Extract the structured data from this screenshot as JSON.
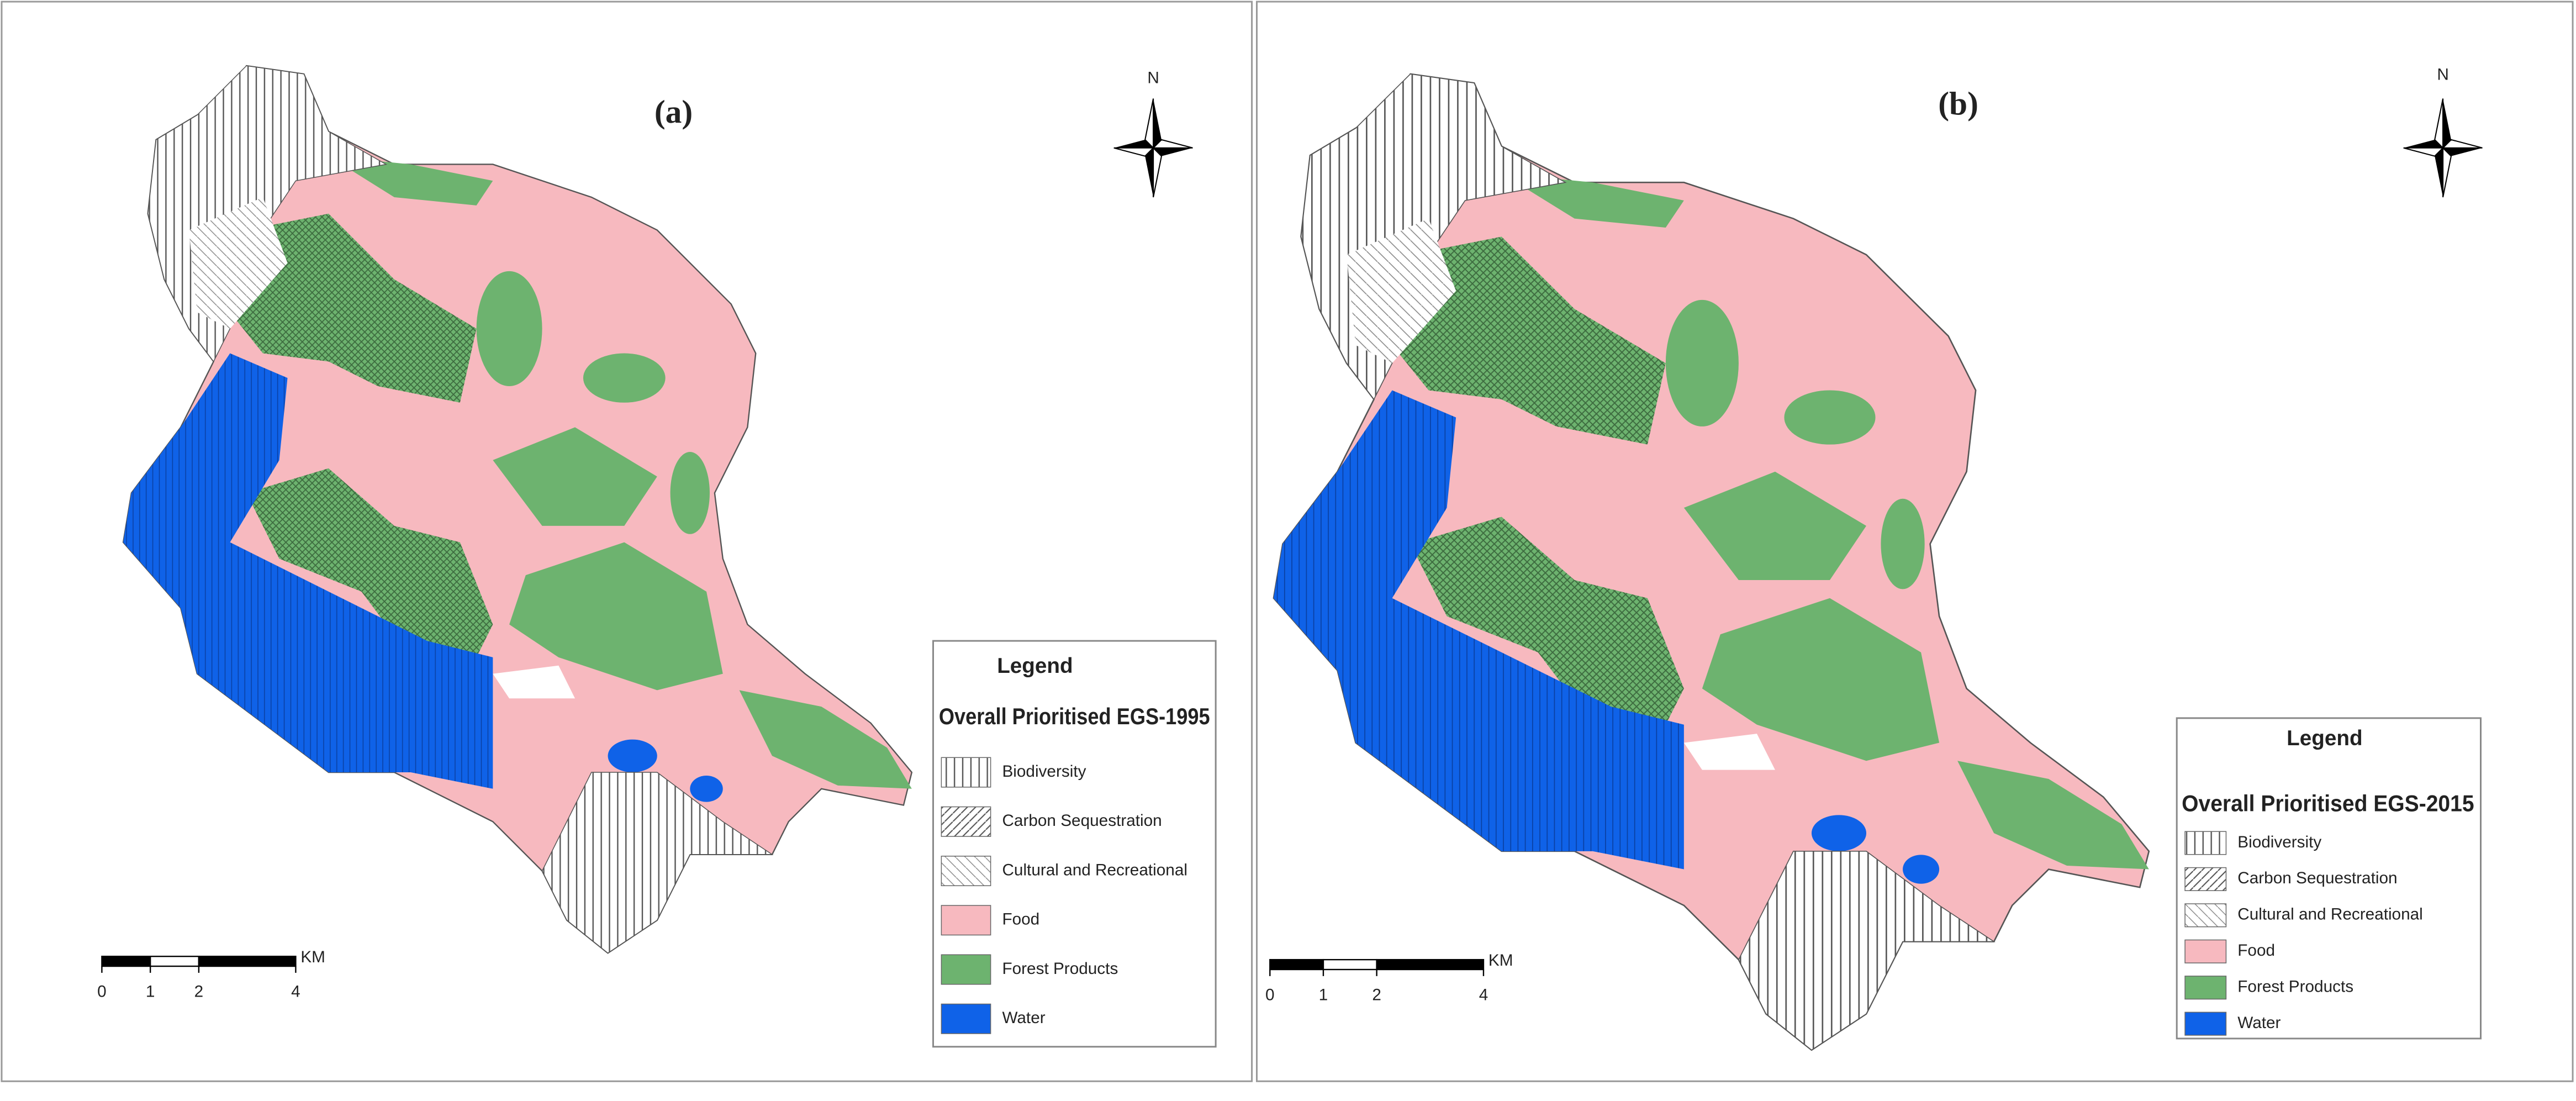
{
  "panels": [
    {
      "label": "(a)",
      "north": "N",
      "legend": {
        "heading": "Legend",
        "title": "Overall Prioritised EGS-1995",
        "items": [
          "Biodiversity",
          "Carbon Sequestration",
          "Cultural and Recreational",
          "Food",
          "Forest Products",
          "Water"
        ]
      },
      "scale": {
        "unit": "KM",
        "ticks": [
          0,
          1,
          2,
          4
        ]
      }
    },
    {
      "label": "(b)",
      "north": "N",
      "legend": {
        "heading": "Legend",
        "title": "Overall Prioritised EGS-2015",
        "items": [
          "Biodiversity",
          "Carbon Sequestration",
          "Cultural and Recreational",
          "Food",
          "Forest Products",
          "Water"
        ]
      },
      "scale": {
        "unit": "KM",
        "ticks": [
          0,
          1,
          2,
          4
        ]
      }
    }
  ]
}
